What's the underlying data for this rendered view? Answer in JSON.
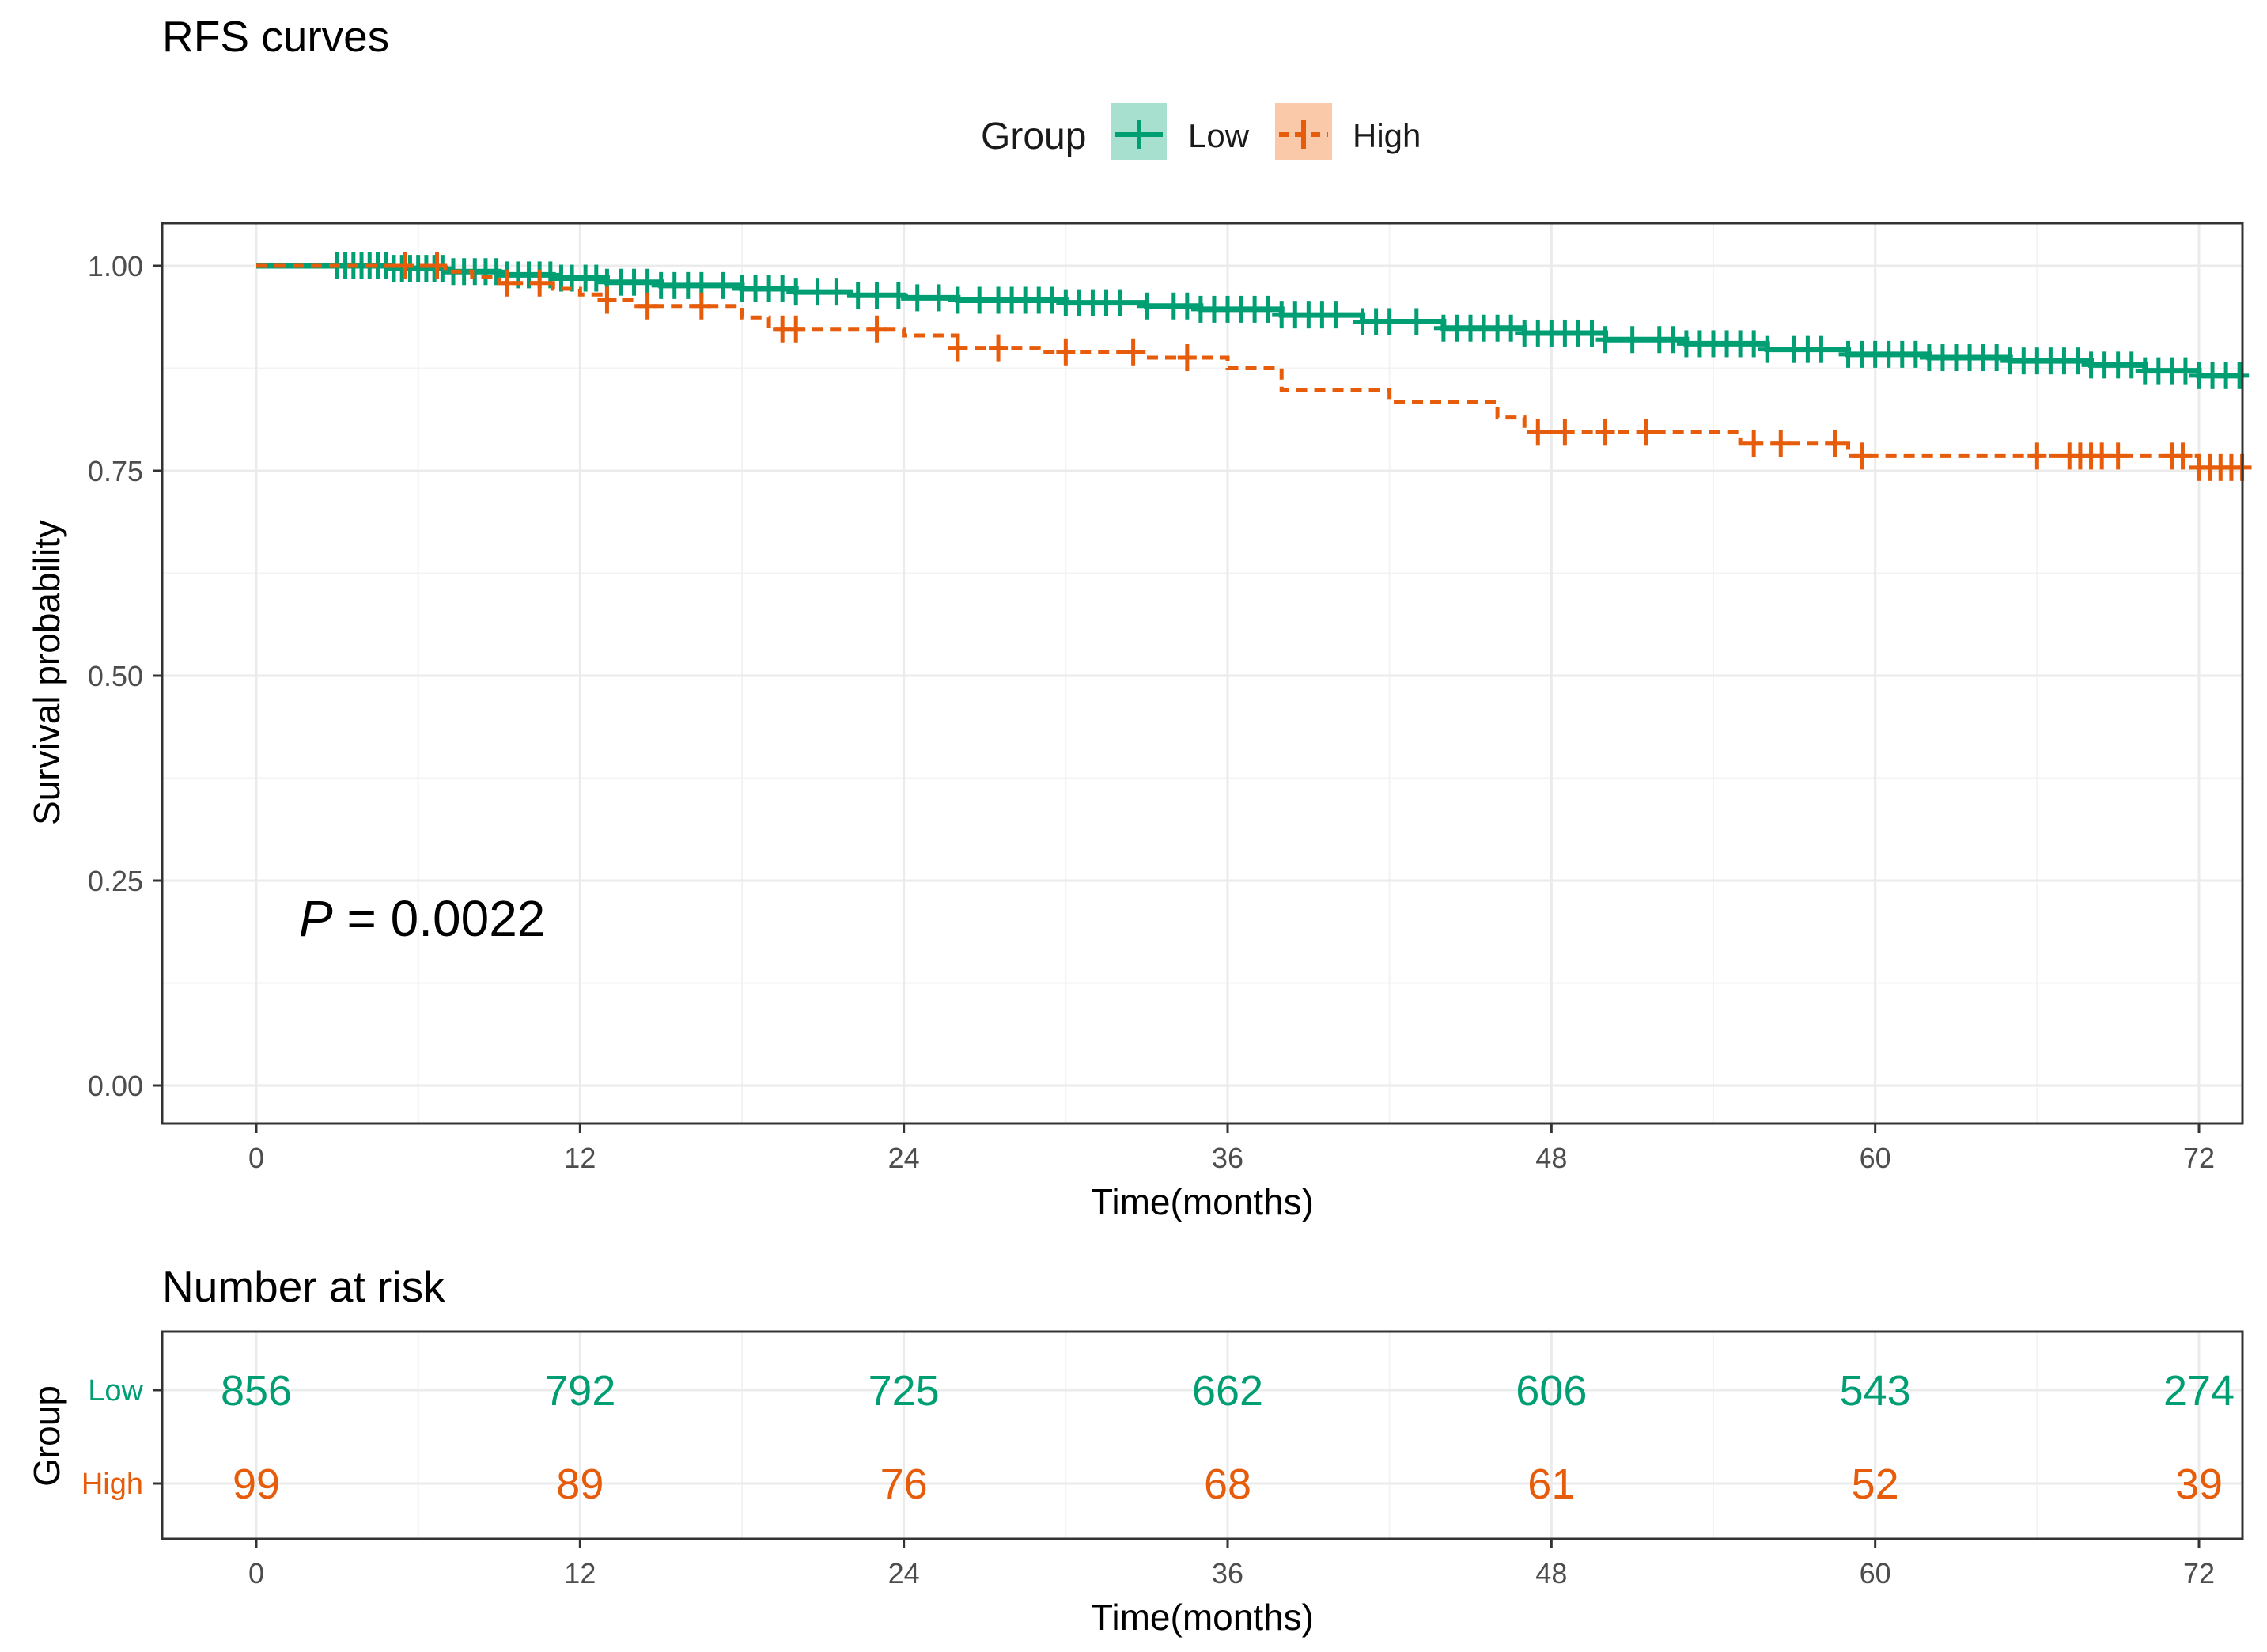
{
  "chart_data": [
    {
      "type": "line",
      "subtype": "kaplan-meier",
      "title": "RFS curves",
      "xlabel": "Time(months)",
      "ylabel": "Survival probability",
      "xlim": [
        0,
        73
      ],
      "ylim": [
        0,
        1.05
      ],
      "x_ticks": [
        0,
        12,
        24,
        36,
        48,
        60,
        72
      ],
      "y_ticks": [
        0,
        0.25,
        0.5,
        0.75,
        1.0
      ],
      "y_tick_labels": [
        "0.00",
        "0.25",
        "0.50",
        "0.75",
        "1.00"
      ],
      "grid": true,
      "legend": {
        "title": "Group",
        "position": "top",
        "entries": [
          "Low",
          "High"
        ]
      },
      "annotation": {
        "p_label": "P",
        "p_value": " = 0.0022"
      },
      "colors": {
        "Low": "#009E73",
        "High": "#E65C0A"
      },
      "series": [
        {
          "name": "Low",
          "line_style": "solid",
          "steps": [
            [
              0,
              1.0
            ],
            [
              5,
              0.997
            ],
            [
              7,
              0.993
            ],
            [
              9,
              0.989
            ],
            [
              11,
              0.985
            ],
            [
              13,
              0.98
            ],
            [
              15,
              0.976
            ],
            [
              18,
              0.972
            ],
            [
              20,
              0.968
            ],
            [
              22,
              0.964
            ],
            [
              24,
              0.961
            ],
            [
              26,
              0.958
            ],
            [
              30,
              0.955
            ],
            [
              33,
              0.951
            ],
            [
              35,
              0.947
            ],
            [
              38,
              0.94
            ],
            [
              41,
              0.932
            ],
            [
              44,
              0.924
            ],
            [
              47,
              0.918
            ],
            [
              50,
              0.91
            ],
            [
              53,
              0.905
            ],
            [
              56,
              0.898
            ],
            [
              59,
              0.892
            ],
            [
              62,
              0.888
            ],
            [
              65,
              0.884
            ],
            [
              68,
              0.879
            ],
            [
              70,
              0.872
            ],
            [
              72,
              0.866
            ],
            [
              73.6,
              0.866
            ]
          ],
          "censor_times": [
            3,
            3.3,
            3.6,
            3.9,
            4.2,
            4.5,
            4.8,
            5.1,
            5.4,
            5.7,
            6,
            6.3,
            6.6,
            6.9,
            7.3,
            7.7,
            8.1,
            8.5,
            8.9,
            9.3,
            9.7,
            10.1,
            10.5,
            10.9,
            11.3,
            11.7,
            12.2,
            12.6,
            13,
            13.5,
            14,
            14.5,
            15,
            15.5,
            16,
            16.5,
            17.3,
            18,
            18.5,
            19,
            19.5,
            20,
            20.8,
            21.5,
            22.3,
            23,
            23.8,
            24.5,
            25.3,
            26,
            26.8,
            27.5,
            28,
            28.5,
            29,
            29.5,
            30,
            30.5,
            31,
            31.5,
            32,
            33,
            34,
            34.5,
            35,
            35.5,
            36,
            36.5,
            37,
            37.5,
            38,
            38.5,
            39,
            39.5,
            40,
            41,
            41.5,
            42,
            43,
            44,
            44.5,
            45,
            45.5,
            46,
            46.5,
            47,
            47.5,
            48,
            48.5,
            49,
            49.5,
            50,
            51,
            52,
            52.5,
            53,
            53.5,
            54,
            54.5,
            55,
            55.5,
            56,
            57,
            57.5,
            58,
            59,
            59.5,
            60,
            60.5,
            61,
            61.5,
            62,
            62.5,
            63,
            63.5,
            64,
            64.5,
            65,
            65.5,
            66,
            66.5,
            67,
            67.5,
            68,
            68.5,
            69,
            69.5,
            70,
            70.5,
            71,
            71.5,
            72,
            72.5,
            73,
            73.5
          ]
        },
        {
          "name": "High",
          "line_style": "dashed",
          "steps": [
            [
              0,
              1.0
            ],
            [
              7,
              0.993
            ],
            [
              8,
              0.986
            ],
            [
              9,
              0.979
            ],
            [
              11,
              0.972
            ],
            [
              12,
              0.965
            ],
            [
              13,
              0.958
            ],
            [
              14,
              0.951
            ],
            [
              18,
              0.937
            ],
            [
              19,
              0.923
            ],
            [
              24,
              0.915
            ],
            [
              26,
              0.9
            ],
            [
              29,
              0.895
            ],
            [
              33,
              0.888
            ],
            [
              36,
              0.875
            ],
            [
              38,
              0.848
            ],
            [
              42,
              0.834
            ],
            [
              46,
              0.815
            ],
            [
              47,
              0.797
            ],
            [
              55,
              0.783
            ],
            [
              59,
              0.768
            ],
            [
              72,
              0.754
            ],
            [
              73.6,
              0.754
            ]
          ],
          "censor_times": [
            5.5,
            6.7,
            9.3,
            10.5,
            13,
            14.5,
            16.5,
            19.5,
            20,
            23,
            26,
            27.5,
            30,
            32.5,
            34.5,
            47.5,
            48.5,
            50,
            51.5,
            55.5,
            56.5,
            58.5,
            59.5,
            66,
            67.2,
            67.6,
            68,
            68.4,
            69,
            71,
            71.4,
            72,
            72.4,
            72.8,
            73.2,
            73.6
          ]
        }
      ]
    },
    {
      "type": "table",
      "title": "Number at risk",
      "xlabel": "Time(months)",
      "ylabel": "Group",
      "x_ticks": [
        0,
        12,
        24,
        36,
        48,
        60,
        72
      ],
      "rows": [
        {
          "group": "Low",
          "values": [
            856,
            792,
            725,
            662,
            606,
            543,
            274
          ]
        },
        {
          "group": "High",
          "values": [
            99,
            89,
            76,
            68,
            61,
            52,
            39
          ]
        }
      ]
    }
  ]
}
